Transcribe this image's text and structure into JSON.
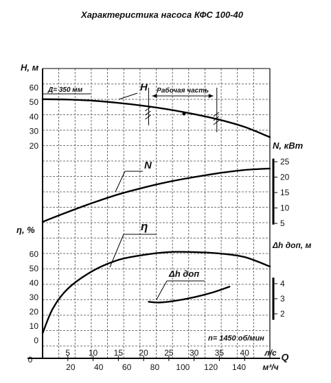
{
  "chart_data": {
    "type": "line",
    "title": "Характеристика насоса КФС 100-40",
    "x_axis": {
      "name": "Q",
      "primary_unit": "л/с",
      "primary_ticks": [
        5,
        10,
        15,
        20,
        25,
        30,
        35,
        40
      ],
      "secondary_unit": "м³/ч",
      "secondary_ticks": [
        20,
        40,
        60,
        80,
        100,
        120,
        140
      ],
      "origin_label": "0",
      "range_ls": [
        0,
        45
      ]
    },
    "panels": {
      "head": {
        "ylabel": "H, м",
        "ticks": [
          20,
          30,
          40,
          50,
          60
        ],
        "ylim": [
          15,
          65
        ],
        "curve_label": "H",
        "annotation": "Д= 350 мм",
        "work_zone_label": "Рабочая часть",
        "work_zone_q": [
          21,
          34.5
        ],
        "nominal_point": {
          "q": 28,
          "h": 42
        }
      },
      "power": {
        "ylabel": "N, кВт",
        "ticks": [
          5,
          10,
          15,
          20,
          25
        ],
        "ylim": [
          5,
          26
        ],
        "curve_label": "N"
      },
      "efficiency": {
        "ylabel": "η, %",
        "ticks": [
          0,
          10,
          20,
          30,
          40,
          50,
          60
        ],
        "ylim": [
          0,
          65
        ],
        "curve_label": "η"
      },
      "npsh": {
        "ylabel": "Δh доп, м",
        "ticks": [
          2,
          3,
          4
        ],
        "ylim": [
          1.5,
          4.5
        ],
        "curve_label": "Δh доп"
      }
    },
    "series": [
      {
        "name": "H",
        "panel": "head",
        "x": [
          0,
          5,
          10,
          15,
          20,
          25,
          30,
          35,
          40,
          45
        ],
        "values": [
          52,
          51.8,
          51,
          49.5,
          47.5,
          45,
          41.8,
          38,
          33,
          26
        ]
      },
      {
        "name": "N",
        "panel": "power",
        "x": [
          0,
          5,
          10,
          15,
          20,
          25,
          30,
          35,
          40,
          45
        ],
        "values": [
          5.5,
          8.7,
          11.7,
          14.4,
          16.6,
          18.5,
          20,
          21.3,
          22.3,
          22.8
        ]
      },
      {
        "name": "η",
        "panel": "efficiency",
        "x": [
          0,
          2,
          5,
          10,
          15,
          20,
          25,
          30,
          35,
          40,
          45
        ],
        "values": [
          5,
          22,
          36,
          48.5,
          56,
          59.5,
          61.5,
          61.5,
          60.5,
          58,
          51.5
        ]
      },
      {
        "name": "Δh доп",
        "panel": "npsh",
        "x": [
          21,
          23,
          26,
          30,
          34,
          37
        ],
        "values": [
          2.8,
          2.75,
          2.85,
          3.1,
          3.45,
          3.8
        ]
      }
    ],
    "footnote": "n= 1450 об/мин"
  }
}
